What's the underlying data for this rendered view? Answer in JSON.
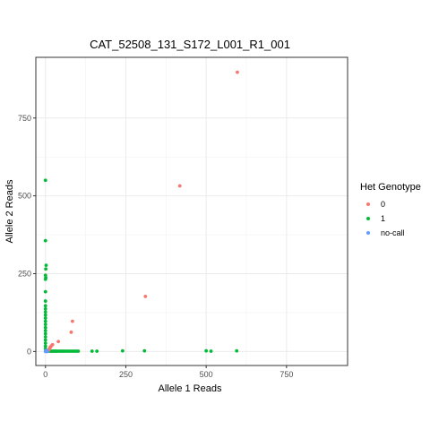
{
  "chart_data": {
    "type": "scatter",
    "title": "CAT_52508_131_S172_L001_R1_001",
    "xlabel": "Allele 1 Reads",
    "ylabel": "Allele 2 Reads",
    "xlim": [
      -30,
      940
    ],
    "ylim": [
      -45,
      945
    ],
    "x_ticks": [
      0,
      250,
      500,
      750
    ],
    "y_ticks": [
      0,
      250,
      500,
      750
    ],
    "grid": true,
    "legend": {
      "title": "Het Genotype",
      "position": "right"
    },
    "series": [
      {
        "name": "0",
        "color": "#F8766D",
        "points": [
          [
            597,
            897
          ],
          [
            418,
            532
          ],
          [
            311,
            177
          ],
          [
            84,
            97
          ],
          [
            80,
            62
          ],
          [
            40,
            32
          ],
          [
            22,
            22
          ],
          [
            18,
            18
          ],
          [
            15,
            14
          ],
          [
            13,
            10
          ],
          [
            12,
            7
          ],
          [
            10,
            4
          ]
        ]
      },
      {
        "name": "1",
        "color": "#00BA38",
        "points": [
          [
            0,
            550
          ],
          [
            0,
            356
          ],
          [
            2,
            277
          ],
          [
            1,
            265
          ],
          [
            0,
            245
          ],
          [
            1,
            237
          ],
          [
            0,
            232
          ],
          [
            0,
            192
          ],
          [
            0,
            162
          ],
          [
            0,
            147
          ],
          [
            0,
            137
          ],
          [
            0,
            127
          ],
          [
            0,
            117
          ],
          [
            0,
            107
          ],
          [
            0,
            97
          ],
          [
            0,
            87
          ],
          [
            0,
            77
          ],
          [
            0,
            67
          ],
          [
            0,
            57
          ],
          [
            0,
            47
          ],
          [
            0,
            37
          ],
          [
            0,
            27
          ],
          [
            0,
            17
          ],
          [
            0,
            8
          ],
          [
            8,
            1
          ],
          [
            12,
            1
          ],
          [
            16,
            1
          ],
          [
            20,
            1
          ],
          [
            24,
            1
          ],
          [
            28,
            1
          ],
          [
            32,
            1
          ],
          [
            36,
            1
          ],
          [
            40,
            1
          ],
          [
            45,
            1
          ],
          [
            50,
            1
          ],
          [
            55,
            1
          ],
          [
            60,
            1
          ],
          [
            66,
            1
          ],
          [
            72,
            1
          ],
          [
            78,
            1
          ],
          [
            84,
            1
          ],
          [
            90,
            1
          ],
          [
            96,
            1
          ],
          [
            102,
            1
          ],
          [
            145,
            1
          ],
          [
            160,
            1
          ],
          [
            240,
            2
          ],
          [
            308,
            2
          ],
          [
            500,
            2
          ],
          [
            515,
            1
          ],
          [
            595,
            2
          ]
        ]
      },
      {
        "name": "no-call",
        "color": "#619CFF",
        "points": [
          [
            0,
            0
          ],
          [
            2,
            1
          ],
          [
            4,
            2
          ],
          [
            6,
            0
          ],
          [
            1,
            3
          ],
          [
            3,
            0
          ]
        ]
      }
    ]
  }
}
